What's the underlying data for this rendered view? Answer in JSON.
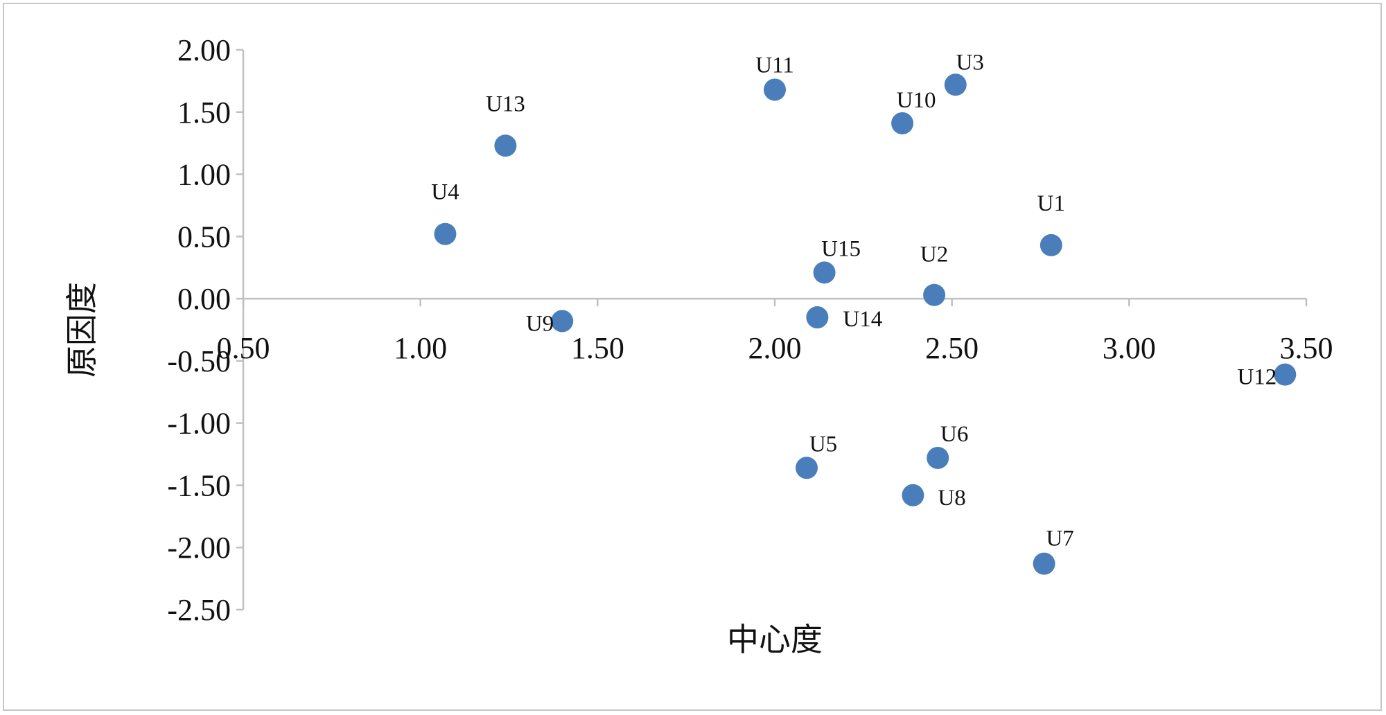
{
  "chart_data": {
    "type": "scatter",
    "xlabel": "中心度",
    "ylabel": "原因度",
    "xlim": [
      0.5,
      3.5
    ],
    "ylim": [
      -2.5,
      2.0
    ],
    "x_ticks": [
      "0.50",
      "1.00",
      "1.50",
      "2.00",
      "2.50",
      "3.00",
      "3.50"
    ],
    "y_ticks": [
      "2.00",
      "1.50",
      "1.00",
      "0.50",
      "0.00",
      "-0.50",
      "-1.00",
      "-1.50",
      "-2.00",
      "-2.50"
    ],
    "grid": false,
    "marker_color": "#4a7ebb",
    "axis_color": "#c0c0c0",
    "points": [
      {
        "label": "U1",
        "x": 2.78,
        "y": 0.43
      },
      {
        "label": "U2",
        "x": 2.45,
        "y": 0.03
      },
      {
        "label": "U3",
        "x": 2.51,
        "y": 1.72
      },
      {
        "label": "U4",
        "x": 1.07,
        "y": 0.52
      },
      {
        "label": "U5",
        "x": 2.09,
        "y": -1.36
      },
      {
        "label": "U6",
        "x": 2.46,
        "y": -1.28
      },
      {
        "label": "U7",
        "x": 2.76,
        "y": -2.13
      },
      {
        "label": "U8",
        "x": 2.39,
        "y": -1.58
      },
      {
        "label": "U9",
        "x": 1.4,
        "y": -0.18
      },
      {
        "label": "U10",
        "x": 2.36,
        "y": 1.41
      },
      {
        "label": "U11",
        "x": 2.0,
        "y": 1.68
      },
      {
        "label": "U12",
        "x": 3.44,
        "y": -0.61
      },
      {
        "label": "U13",
        "x": 1.24,
        "y": 1.23
      },
      {
        "label": "U14",
        "x": 2.12,
        "y": -0.15
      },
      {
        "label": "U15",
        "x": 2.14,
        "y": 0.21
      }
    ]
  }
}
